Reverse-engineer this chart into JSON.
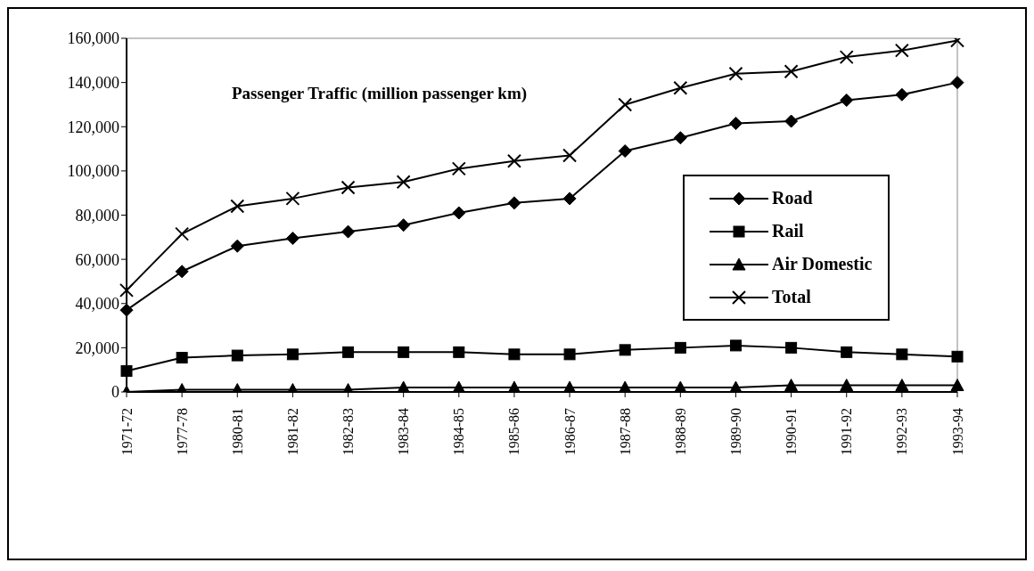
{
  "chart_data": {
    "type": "line",
    "title": "Passenger Traffic (million passenger km)",
    "categories": [
      "1971-72",
      "1977-78",
      "1980-81",
      "1981-82",
      "1982-83",
      "1983-84",
      "1984-85",
      "1985-86",
      "1986-87",
      "1987-88",
      "1988-89",
      "1989-90",
      "1990-91",
      "1991-92",
      "1992-93",
      "1993-94"
    ],
    "series": [
      {
        "name": "Road",
        "color": "#000000",
        "marker": "diamond",
        "values": [
          37000,
          54500,
          66000,
          69500,
          72500,
          75500,
          81000,
          85500,
          87500,
          109000,
          115000,
          121500,
          122500,
          132000,
          134500,
          140000
        ]
      },
      {
        "name": "Rail",
        "color": "#000000",
        "marker": "square",
        "values": [
          9500,
          15500,
          16500,
          17000,
          18000,
          18000,
          18000,
          17000,
          17000,
          19000,
          20000,
          21000,
          20000,
          18000,
          17000,
          16000
        ]
      },
      {
        "name": "Air Domestic",
        "color": "#000000",
        "marker": "triangle",
        "values": [
          0,
          1000,
          1000,
          1000,
          1000,
          2000,
          2000,
          2000,
          2000,
          2000,
          2000,
          2000,
          3000,
          3000,
          3000,
          3000
        ]
      },
      {
        "name": "Total",
        "color": "#000000",
        "marker": "cross",
        "values": [
          46000,
          71500,
          84000,
          87500,
          92500,
          95000,
          101000,
          104500,
          107000,
          130000,
          137500,
          144000,
          145000,
          151500,
          154500,
          159000
        ]
      }
    ],
    "ylim": [
      0,
      160000
    ],
    "yticks": [
      0,
      {
        "value": 20000,
        "label": "20,000"
      },
      {
        "value": 40000,
        "label": "40,000"
      },
      {
        "value": 60000,
        "label": "60,000"
      },
      {
        "value": 80000,
        "label": "80,000"
      },
      {
        "value": 100000,
        "label": "100,000"
      },
      {
        "value": 120000,
        "label": "120,000"
      },
      {
        "value": 140000,
        "label": "140,000"
      },
      {
        "value": 160000,
        "label": "160,000"
      }
    ],
    "grid": false,
    "legend": "right",
    "line_style": "solid"
  }
}
